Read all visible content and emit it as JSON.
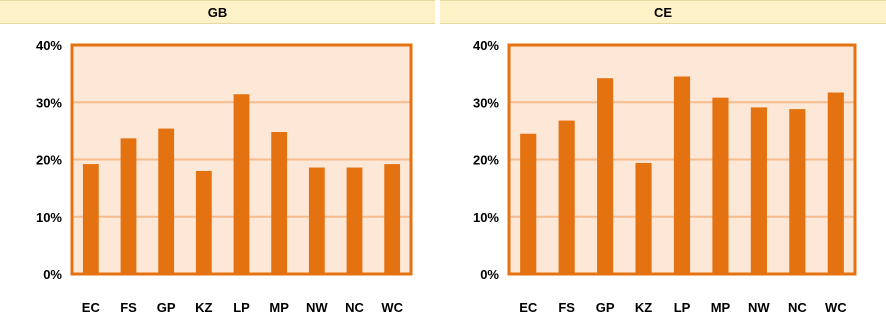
{
  "chart_data": [
    {
      "type": "bar",
      "title": "GB",
      "categories": [
        "EC",
        "FS",
        "GP",
        "KZ",
        "LP",
        "MP",
        "NW",
        "NC",
        "WC"
      ],
      "values": [
        19.2,
        23.7,
        25.4,
        18.0,
        31.4,
        24.8,
        18.6,
        18.6,
        19.2
      ],
      "ylim": [
        0,
        40
      ],
      "yticks": [
        "0%",
        "10%",
        "20%",
        "30%",
        "40%"
      ],
      "grid": true,
      "colors": {
        "bar": "#e57210",
        "plot_bg": "#fde8d8",
        "grid": "#f5bc8f",
        "axis": "#e57210"
      }
    },
    {
      "type": "bar",
      "title": "CE",
      "categories": [
        "EC",
        "FS",
        "GP",
        "KZ",
        "LP",
        "MP",
        "NW",
        "NC",
        "WC"
      ],
      "values": [
        24.5,
        26.8,
        34.2,
        19.4,
        34.5,
        30.8,
        29.1,
        28.8,
        31.7
      ],
      "ylim": [
        0,
        40
      ],
      "yticks": [
        "0%",
        "10%",
        "20%",
        "30%",
        "40%"
      ],
      "grid": true,
      "colors": {
        "bar": "#e57210",
        "plot_bg": "#fde8d8",
        "grid": "#f5bc8f",
        "axis": "#e57210"
      }
    }
  ]
}
